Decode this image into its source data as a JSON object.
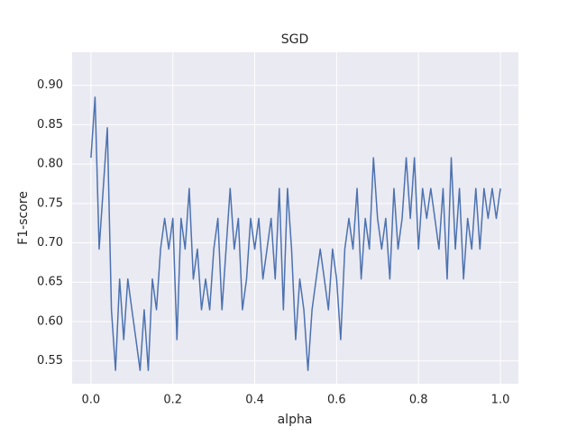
{
  "chart_data": {
    "type": "line",
    "title": "SGD",
    "xlabel": "alpha",
    "ylabel": "F1-score",
    "x": [
      0,
      0.01,
      0.02,
      0.03,
      0.04,
      0.05,
      0.06,
      0.07,
      0.08,
      0.09,
      0.1,
      0.11,
      0.12,
      0.13,
      0.14,
      0.15,
      0.16,
      0.17,
      0.18,
      0.19,
      0.2,
      0.21,
      0.22,
      0.23,
      0.24,
      0.25,
      0.26,
      0.27,
      0.28,
      0.29,
      0.3,
      0.31,
      0.32,
      0.33,
      0.34,
      0.35,
      0.36,
      0.37,
      0.38,
      0.39,
      0.4,
      0.41,
      0.42,
      0.43,
      0.44,
      0.45,
      0.46,
      0.47,
      0.48,
      0.49,
      0.5,
      0.51,
      0.52,
      0.53,
      0.54,
      0.55,
      0.56,
      0.57,
      0.58,
      0.59,
      0.6,
      0.61,
      0.62,
      0.63,
      0.64,
      0.65,
      0.66,
      0.67,
      0.68,
      0.69,
      0.7,
      0.71,
      0.72,
      0.73,
      0.74,
      0.75,
      0.76,
      0.77,
      0.78,
      0.79,
      0.8,
      0.81,
      0.82,
      0.83,
      0.84,
      0.85,
      0.86,
      0.87,
      0.88,
      0.89,
      0.9,
      0.91,
      0.92,
      0.93,
      0.94,
      0.95,
      0.96,
      0.97,
      0.98,
      0.99,
      1
    ],
    "series": [
      {
        "name": "SGD",
        "color": "#4c72b0",
        "values": [
          0.808,
          0.885,
          0.692,
          0.769,
          0.846,
          0.615,
          0.538,
          0.654,
          0.577,
          0.654,
          0.615,
          0.577,
          0.538,
          0.615,
          0.538,
          0.654,
          0.615,
          0.692,
          0.731,
          0.692,
          0.731,
          0.577,
          0.731,
          0.692,
          0.769,
          0.654,
          0.692,
          0.615,
          0.654,
          0.615,
          0.692,
          0.731,
          0.615,
          0.692,
          0.769,
          0.692,
          0.731,
          0.615,
          0.654,
          0.731,
          0.692,
          0.731,
          0.654,
          0.692,
          0.731,
          0.654,
          0.769,
          0.615,
          0.769,
          0.692,
          0.577,
          0.654,
          0.615,
          0.538,
          0.615,
          0.654,
          0.692,
          0.654,
          0.615,
          0.692,
          0.654,
          0.577,
          0.692,
          0.731,
          0.692,
          0.769,
          0.654,
          0.731,
          0.692,
          0.808,
          0.731,
          0.692,
          0.731,
          0.654,
          0.769,
          0.692,
          0.731,
          0.808,
          0.731,
          0.808,
          0.692,
          0.769,
          0.731,
          0.769,
          0.731,
          0.692,
          0.769,
          0.654,
          0.808,
          0.692,
          0.769,
          0.654,
          0.731,
          0.692,
          0.769,
          0.692,
          0.769,
          0.731,
          0.769,
          0.731,
          0.769
        ]
      }
    ],
    "xlim": [
      -0.046,
      1.044
    ],
    "ylim": [
      0.521,
      0.942
    ],
    "xticks": [
      {
        "value": 0,
        "label": "0.0"
      },
      0.2,
      0.4,
      0.6,
      0.8,
      {
        "value": 1,
        "label": "1.0"
      }
    ],
    "yticks": [
      0.55,
      {
        "value": 0.6,
        "label": "0.60"
      },
      0.65,
      {
        "value": 0.7,
        "label": "0.70"
      },
      0.75,
      {
        "value": 0.8,
        "label": "0.80"
      },
      0.85,
      {
        "value": 0.9,
        "label": "0.90"
      }
    ],
    "grid": true,
    "background": "#eaeaf2"
  }
}
